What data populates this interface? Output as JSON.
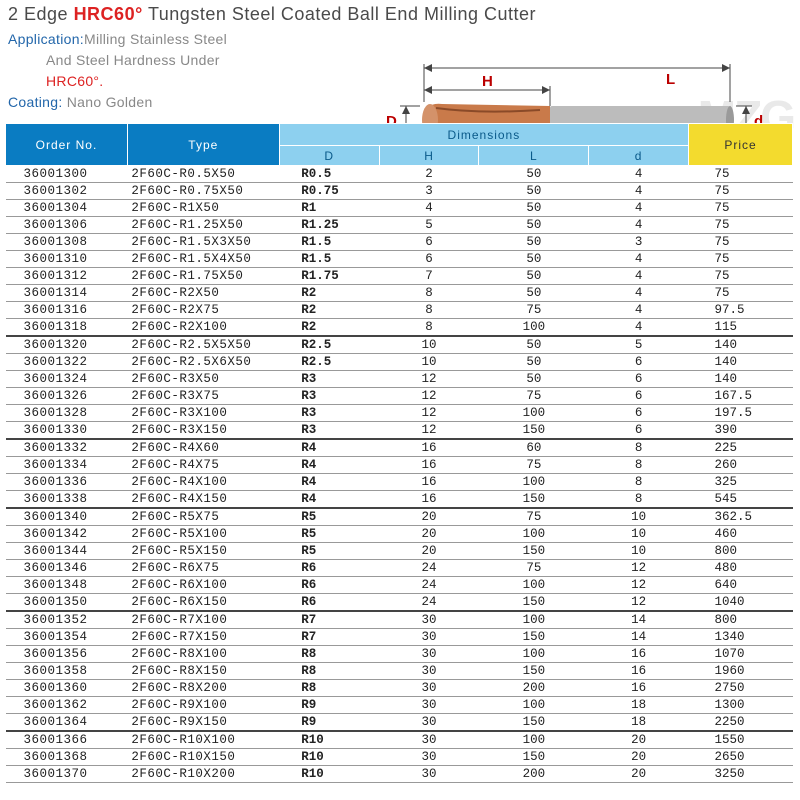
{
  "title": {
    "pre": "2 Edge ",
    "hl": "HRC60°",
    "post": " Tungsten Steel Coated Ball End Milling Cutter"
  },
  "meta": {
    "application_label": "Application:",
    "application_l1": "Milling Stainless Steel",
    "application_l2": "And Steel Hardness Under",
    "application_hrc": "HRC60°.",
    "coating_label": "Coating:",
    "coating_value": " Nano Golden"
  },
  "watermark": "MZG",
  "diagram": {
    "D": "D",
    "H": "H",
    "L": "L",
    "d": "d"
  },
  "header": {
    "order": "Order No.",
    "type": "Type",
    "dims": "Dimensions",
    "D": "D",
    "H": "H",
    "L": "L",
    "d": "d",
    "price": "Price"
  },
  "colors": {
    "th_blue": "#0a7cc2",
    "th_lblue": "#8dd0ef",
    "th_yellow": "#f3db2e",
    "row_border": "#999999",
    "sep_border": "#444444",
    "text": "#222222"
  },
  "groups": [
    [
      [
        "36001300",
        "2F60C-R0.5X50",
        "R0.5",
        "2",
        "50",
        "4",
        "75"
      ],
      [
        "36001302",
        "2F60C-R0.75X50",
        "R0.75",
        "3",
        "50",
        "4",
        "75"
      ],
      [
        "36001304",
        "2F60C-R1X50",
        "R1",
        "4",
        "50",
        "4",
        "75"
      ],
      [
        "36001306",
        "2F60C-R1.25X50",
        "R1.25",
        "5",
        "50",
        "4",
        "75"
      ],
      [
        "36001308",
        "2F60C-R1.5X3X50",
        "R1.5",
        "6",
        "50",
        "3",
        "75"
      ],
      [
        "36001310",
        "2F60C-R1.5X4X50",
        "R1.5",
        "6",
        "50",
        "4",
        "75"
      ],
      [
        "36001312",
        "2F60C-R1.75X50",
        "R1.75",
        "7",
        "50",
        "4",
        "75"
      ],
      [
        "36001314",
        "2F60C-R2X50",
        "R2",
        "8",
        "50",
        "4",
        "75"
      ],
      [
        "36001316",
        "2F60C-R2X75",
        "R2",
        "8",
        "75",
        "4",
        "97.5"
      ],
      [
        "36001318",
        "2F60C-R2X100",
        "R2",
        "8",
        "100",
        "4",
        "115"
      ]
    ],
    [
      [
        "36001320",
        "2F60C-R2.5X5X50",
        "R2.5",
        "10",
        "50",
        "5",
        "140"
      ],
      [
        "36001322",
        "2F60C-R2.5X6X50",
        "R2.5",
        "10",
        "50",
        "6",
        "140"
      ],
      [
        "36001324",
        "2F60C-R3X50",
        "R3",
        "12",
        "50",
        "6",
        "140"
      ],
      [
        "36001326",
        "2F60C-R3X75",
        "R3",
        "12",
        "75",
        "6",
        "167.5"
      ],
      [
        "36001328",
        "2F60C-R3X100",
        "R3",
        "12",
        "100",
        "6",
        "197.5"
      ],
      [
        "36001330",
        "2F60C-R3X150",
        "R3",
        "12",
        "150",
        "6",
        "390"
      ]
    ],
    [
      [
        "36001332",
        "2F60C-R4X60",
        "R4",
        "16",
        "60",
        "8",
        "225"
      ],
      [
        "36001334",
        "2F60C-R4X75",
        "R4",
        "16",
        "75",
        "8",
        "260"
      ],
      [
        "36001336",
        "2F60C-R4X100",
        "R4",
        "16",
        "100",
        "8",
        "325"
      ],
      [
        "36001338",
        "2F60C-R4X150",
        "R4",
        "16",
        "150",
        "8",
        "545"
      ]
    ],
    [
      [
        "36001340",
        "2F60C-R5X75",
        "R5",
        "20",
        "75",
        "10",
        "362.5"
      ],
      [
        "36001342",
        "2F60C-R5X100",
        "R5",
        "20",
        "100",
        "10",
        "460"
      ],
      [
        "36001344",
        "2F60C-R5X150",
        "R5",
        "20",
        "150",
        "10",
        "800"
      ],
      [
        "36001346",
        "2F60C-R6X75",
        "R6",
        "24",
        "75",
        "12",
        "480"
      ],
      [
        "36001348",
        "2F60C-R6X100",
        "R6",
        "24",
        "100",
        "12",
        "640"
      ],
      [
        "36001350",
        "2F60C-R6X150",
        "R6",
        "24",
        "150",
        "12",
        "1040"
      ]
    ],
    [
      [
        "36001352",
        "2F60C-R7X100",
        "R7",
        "30",
        "100",
        "14",
        "800"
      ],
      [
        "36001354",
        "2F60C-R7X150",
        "R7",
        "30",
        "150",
        "14",
        "1340"
      ],
      [
        "36001356",
        "2F60C-R8X100",
        "R8",
        "30",
        "100",
        "16",
        "1070"
      ],
      [
        "36001358",
        "2F60C-R8X150",
        "R8",
        "30",
        "150",
        "16",
        "1960"
      ],
      [
        "36001360",
        "2F60C-R8X200",
        "R8",
        "30",
        "200",
        "16",
        "2750"
      ],
      [
        "36001362",
        "2F60C-R9X100",
        "R9",
        "30",
        "100",
        "18",
        "1300"
      ],
      [
        "36001364",
        "2F60C-R9X150",
        "R9",
        "30",
        "150",
        "18",
        "2250"
      ]
    ],
    [
      [
        "36001366",
        "2F60C-R10X100",
        "R10",
        "30",
        "100",
        "20",
        "1550"
      ],
      [
        "36001368",
        "2F60C-R10X150",
        "R10",
        "30",
        "150",
        "20",
        "2650"
      ],
      [
        "36001370",
        "2F60C-R10X200",
        "R10",
        "30",
        "200",
        "20",
        "3250"
      ]
    ]
  ]
}
